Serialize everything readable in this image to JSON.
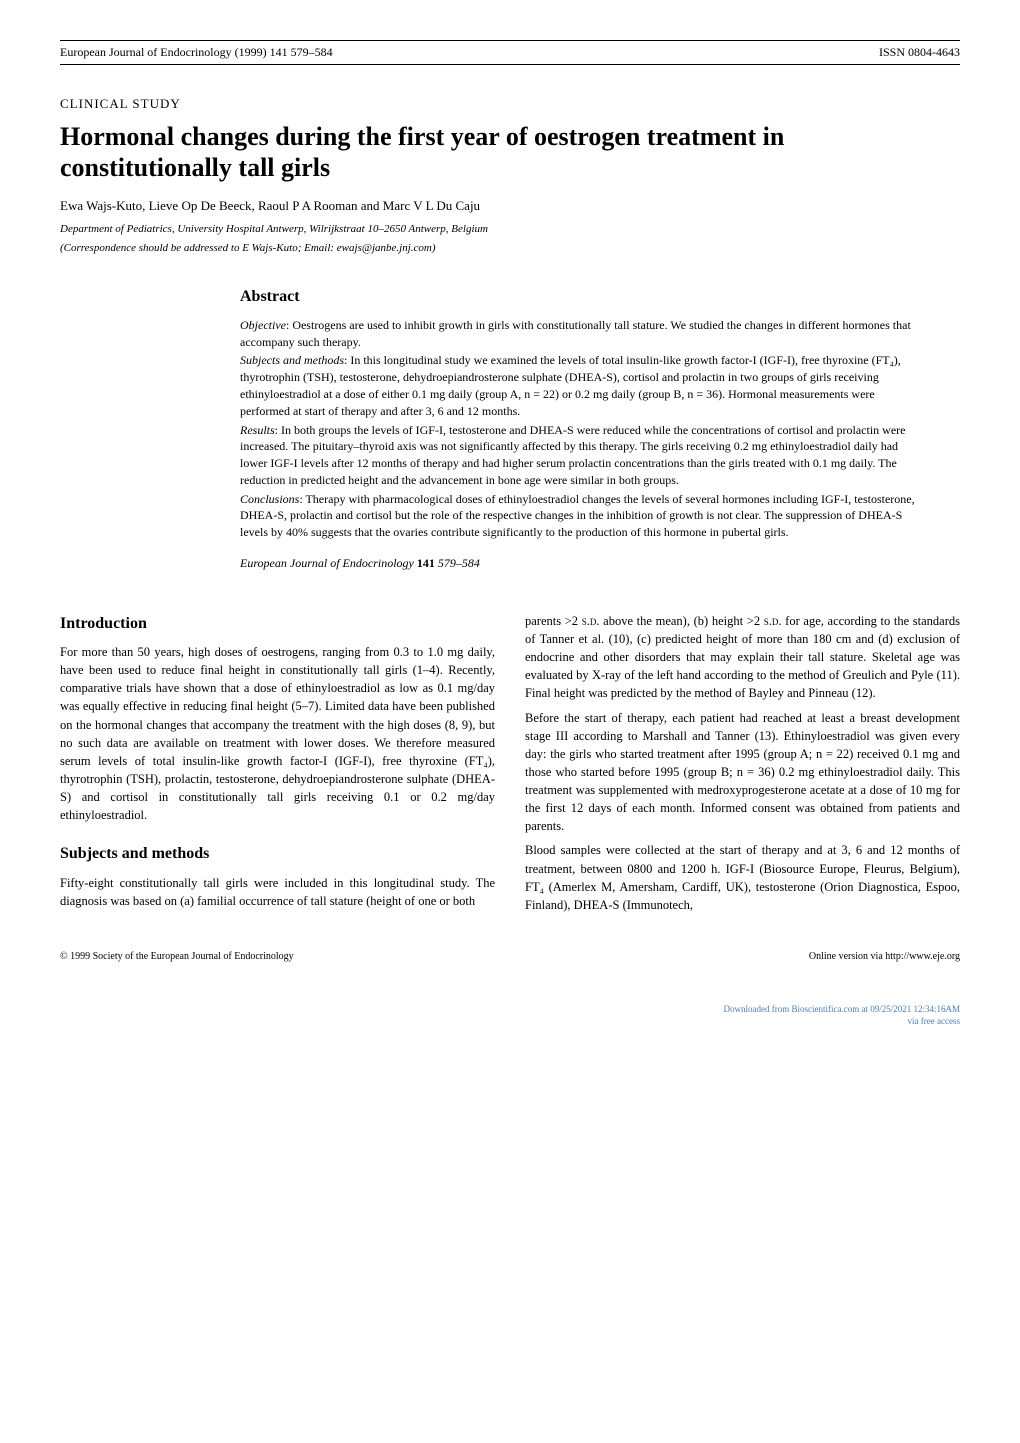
{
  "header": {
    "journal_issue": "European Journal of Endocrinology (1999) 141 579–584",
    "issn": "ISSN 0804-4643"
  },
  "study_type": "CLINICAL STUDY",
  "title": "Hormonal changes during the first year of oestrogen treatment in constitutionally tall girls",
  "authors": "Ewa Wajs-Kuto, Lieve Op De Beeck, Raoul P A Rooman and Marc V L Du Caju",
  "affiliation": "Department of Pediatrics, University Hospital Antwerp, Wilrijkstraat 10–2650 Antwerp, Belgium",
  "correspondence": "(Correspondence should be addressed to E Wajs-Kuto; Email: ewajs@janbe.jnj.com)",
  "abstract": {
    "heading": "Abstract",
    "objective_label": "Objective",
    "objective": ": Oestrogens are used to inhibit growth in girls with constitutionally tall stature. We studied the changes in different hormones that accompany such therapy.",
    "subjects_label": "Subjects and methods",
    "subjects": ": In this longitudinal study we examined the levels of total insulin-like growth factor-I (IGF-I), free thyroxine (FT₄), thyrotrophin (TSH), testosterone, dehydroepiandrosterone sulphate (DHEA-S), cortisol and prolactin in two groups of girls receiving ethinyloestradiol at a dose of either 0.1 mg daily (group A, n = 22) or 0.2 mg daily (group B, n = 36). Hormonal measurements were performed at start of therapy and after 3, 6 and 12 months.",
    "results_label": "Results",
    "results": ": In both groups the levels of IGF-I, testosterone and DHEA-S were reduced while the concentrations of cortisol and prolactin were increased. The pituitary–thyroid axis was not significantly affected by this therapy. The girls receiving 0.2 mg ethinyloestradiol daily had lower IGF-I levels after 12 months of therapy and had higher serum prolactin concentrations than the girls treated with 0.1 mg daily. The reduction in predicted height and the advancement in bone age were similar in both groups.",
    "conclusions_label": "Conclusions",
    "conclusions": ": Therapy with pharmacological doses of ethinyloestradiol changes the levels of several hormones including IGF-I, testosterone, DHEA-S, prolactin and cortisol but the role of the respective changes in the inhibition of growth is not clear. The suppression of DHEA-S levels by 40% suggests that the ovaries contribute significantly to the production of this hormone in pubertal girls.",
    "journal_ref_name": "European Journal of Endocrinology",
    "journal_ref_vol": "141",
    "journal_ref_pages": "579–584"
  },
  "sections": {
    "introduction": {
      "heading": "Introduction",
      "text": "For more than 50 years, high doses of oestrogens, ranging from 0.3 to 1.0 mg daily, have been used to reduce final height in constitutionally tall girls (1–4). Recently, comparative trials have shown that a dose of ethinyloestradiol as low as 0.1 mg/day was equally effective in reducing final height (5–7). Limited data have been published on the hormonal changes that accompany the treatment with the high doses (8, 9), but no such data are available on treatment with lower doses. We therefore measured serum levels of total insulin-like growth factor-I (IGF-I), free thyroxine (FT₄), thyrotrophin (TSH), prolactin, testosterone, dehydroepiandrosterone sulphate (DHEA-S) and cortisol in constitutionally tall girls receiving 0.1 or 0.2 mg/day ethinyloestradiol."
    },
    "subjects_methods": {
      "heading": "Subjects and methods",
      "p1": "Fifty-eight constitutionally tall girls were included in this longitudinal study. The diagnosis was based on (a) familial occurrence of tall stature (height of one or both",
      "p2": "parents >2 ",
      "p2_sd": "s.d.",
      "p2b": " above the mean), (b) height >2 ",
      "p2_sd2": "s.d.",
      "p2c": " for age, according to the standards of Tanner et al. (10), (c) predicted height of more than 180 cm and (d) exclusion of endocrine and other disorders that may explain their tall stature. Skeletal age was evaluated by X-ray of the left hand according to the method of Greulich and Pyle (11). Final height was predicted by the method of Bayley and Pinneau (12).",
      "p3": "Before the start of therapy, each patient had reached at least a breast development stage III according to Marshall and Tanner (13). Ethinyloestradiol was given every day: the girls who started treatment after 1995 (group A; n = 22) received 0.1 mg and those who started before 1995 (group B; n = 36) 0.2 mg ethinyloestradiol daily. This treatment was supplemented with medroxyprogesterone acetate at a dose of 10 mg for the first 12 days of each month. Informed consent was obtained from patients and parents.",
      "p4": "Blood samples were collected at the start of therapy and at 3, 6 and 12 months of treatment, between 0800 and 1200 h. IGF-I (Biosource Europe, Fleurus, Belgium), FT₄ (Amerlex M, Amersham, Cardiff, UK), testosterone (Orion Diagnostica, Espoo, Finland), DHEA-S (Immunotech,"
    }
  },
  "footer": {
    "copyright": "© 1999 Society of the European Journal of Endocrinology",
    "online": "Online version via http://www.eje.org"
  },
  "download": {
    "line1": "Downloaded from Bioscientifica.com at 09/25/2021 12:34:16AM",
    "line2": "via free access"
  }
}
